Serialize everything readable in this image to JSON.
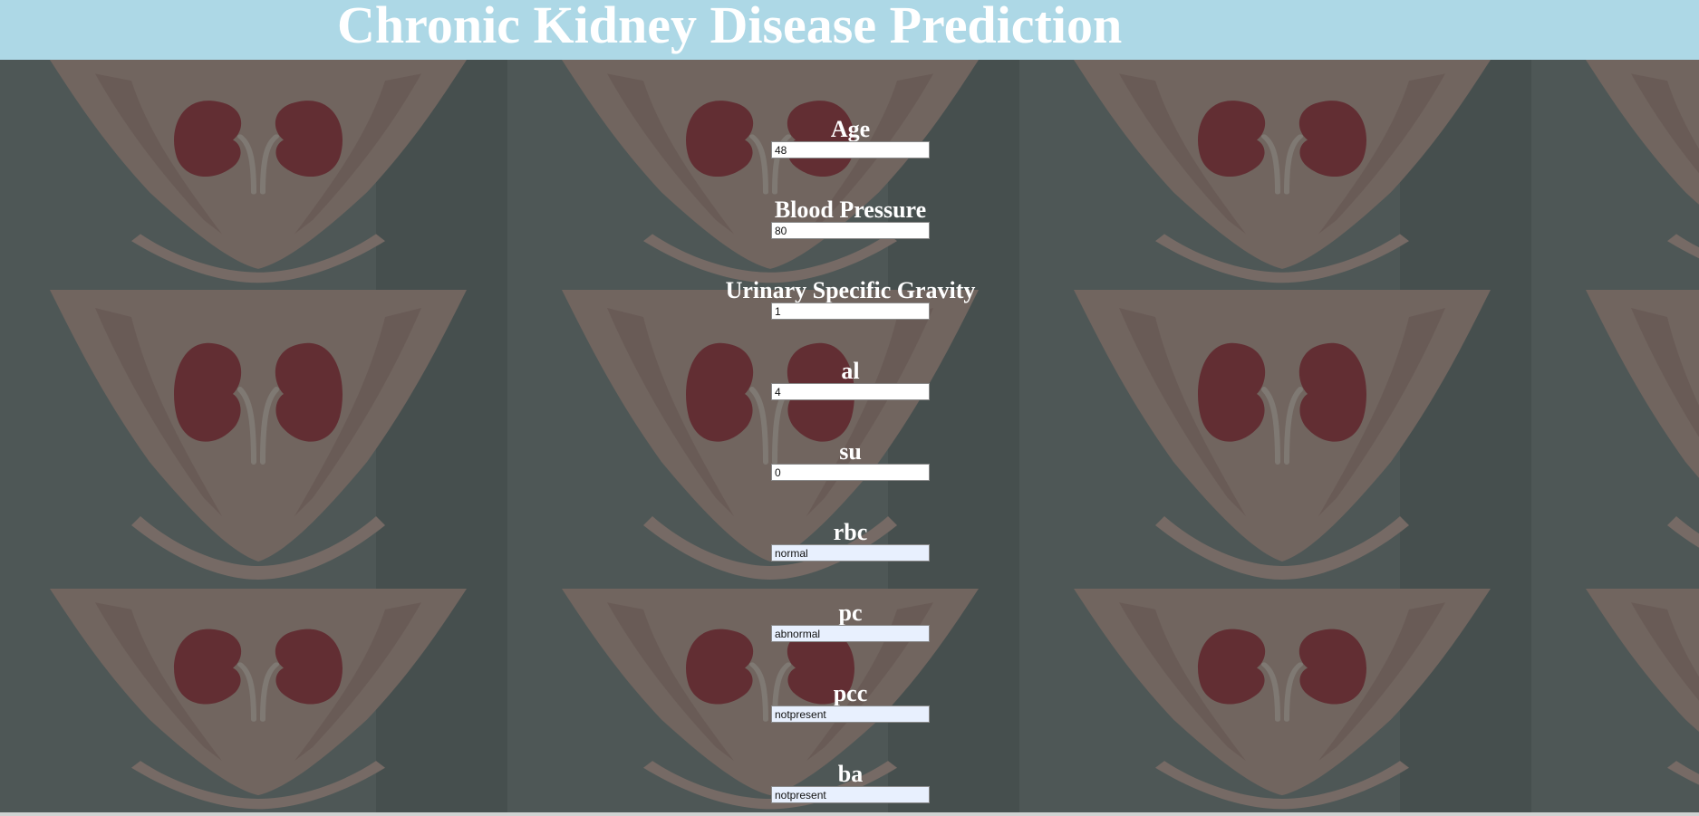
{
  "page": {
    "title": "Chronic Kidney Disease Prediction",
    "header_color": "#add8e6"
  },
  "background": {
    "description_icon": "kidney-in-hands-image"
  },
  "fields": [
    {
      "label": "Age",
      "value": "48",
      "autofilled": false
    },
    {
      "label": "Blood Pressure",
      "value": "80",
      "autofilled": false
    },
    {
      "label": "Urinary Specific Gravity",
      "value": "1",
      "autofilled": false
    },
    {
      "label": "al",
      "value": "4",
      "autofilled": false
    },
    {
      "label": "su",
      "value": "0",
      "autofilled": false
    },
    {
      "label": "rbc",
      "value": "normal",
      "autofilled": true
    },
    {
      "label": "pc",
      "value": "abnormal",
      "autofilled": true
    },
    {
      "label": "pcc",
      "value": "notpresent",
      "autofilled": true
    },
    {
      "label": "ba",
      "value": "notpresent",
      "autofilled": true
    }
  ]
}
